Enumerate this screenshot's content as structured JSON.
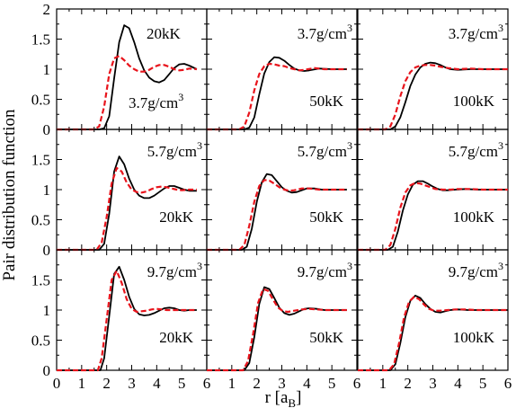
{
  "chart_data": {
    "type": "line",
    "layout": "3x3 grid of panels sharing axes",
    "ylabel": "Pair distribution function",
    "xlabel": "r [a",
    "xlabel_sub": "B",
    "xlabel_end": "]",
    "xlim": [
      0,
      6
    ],
    "ylim": [
      0,
      2
    ],
    "x_ticks": [
      "0",
      "1",
      "2",
      "3",
      "4",
      "5",
      "6"
    ],
    "y_ticks": [
      "0",
      "0.5",
      "1",
      "1.5",
      "2"
    ],
    "grid": false,
    "legend": "none",
    "colors": {
      "solid": "#000000",
      "dashed": "#e8141c"
    },
    "panels": [
      {
        "row": 0,
        "col": 0,
        "label1": "20kK",
        "label2": "3.7g/cm",
        "label2_sup": "3",
        "series": [
          {
            "style": "solid",
            "x": [
              0,
              1.7,
              1.9,
              2.1,
              2.3,
              2.5,
              2.7,
              2.9,
              3.1,
              3.3,
              3.5,
              3.7,
              3.9,
              4.1,
              4.3,
              4.5,
              4.7,
              4.9,
              5.1,
              5.3,
              5.6
            ],
            "y": [
              0,
              0,
              0.02,
              0.22,
              0.85,
              1.45,
              1.73,
              1.68,
              1.45,
              1.18,
              0.98,
              0.86,
              0.8,
              0.78,
              0.82,
              0.92,
              1.02,
              1.08,
              1.09,
              1.06,
              1.0
            ]
          },
          {
            "style": "dashed",
            "x": [
              0,
              1.5,
              1.7,
              1.9,
              2.1,
              2.3,
              2.5,
              2.7,
              2.9,
              3.1,
              3.3,
              3.5,
              3.7,
              3.9,
              4.1,
              4.3,
              4.5,
              4.7,
              4.9,
              5.1,
              5.3,
              5.6
            ],
            "y": [
              0,
              0,
              0.05,
              0.38,
              0.92,
              1.18,
              1.22,
              1.15,
              1.06,
              1.0,
              0.96,
              0.96,
              0.99,
              1.04,
              1.07,
              1.07,
              1.04,
              1.0,
              0.98,
              0.99,
              1.01,
              1.0
            ]
          }
        ]
      },
      {
        "row": 0,
        "col": 1,
        "label1": "50kK",
        "label2": "3.7g/cm",
        "label2_sup": "3",
        "series": [
          {
            "style": "solid",
            "x": [
              0,
              1.5,
              1.7,
              1.9,
              2.1,
              2.3,
              2.5,
              2.7,
              2.9,
              3.1,
              3.3,
              3.5,
              3.7,
              3.9,
              4.1,
              4.5,
              5.0,
              5.6
            ],
            "y": [
              0,
              0,
              0.03,
              0.2,
              0.58,
              0.93,
              1.12,
              1.2,
              1.19,
              1.14,
              1.07,
              1.01,
              0.98,
              0.97,
              0.98,
              1.01,
              1.0,
              1.0
            ]
          },
          {
            "style": "dashed",
            "x": [
              0,
              1.3,
              1.5,
              1.7,
              1.9,
              2.1,
              2.3,
              2.5,
              2.7,
              2.9,
              3.1,
              3.3,
              3.5,
              3.7,
              3.9,
              4.3,
              4.7,
              5.0,
              5.6
            ],
            "y": [
              0,
              0,
              0.05,
              0.28,
              0.65,
              0.92,
              1.05,
              1.09,
              1.08,
              1.06,
              1.05,
              1.02,
              1.0,
              0.98,
              0.99,
              1.02,
              1.0,
              1.0,
              1.0
            ]
          }
        ]
      },
      {
        "row": 0,
        "col": 2,
        "label1": "100kK",
        "label2": "3.7g/cm",
        "label2_sup": "3",
        "series": [
          {
            "style": "solid",
            "x": [
              0,
              1.3,
              1.5,
              1.7,
              1.9,
              2.1,
              2.3,
              2.5,
              2.7,
              2.9,
              3.1,
              3.3,
              3.5,
              3.7,
              4.0,
              4.5,
              5.0,
              6.0
            ],
            "y": [
              0,
              0,
              0.05,
              0.2,
              0.45,
              0.72,
              0.91,
              1.03,
              1.09,
              1.11,
              1.1,
              1.07,
              1.03,
              1.0,
              0.99,
              1.0,
              1.0,
              1.0
            ]
          },
          {
            "style": "dashed",
            "x": [
              0,
              1.1,
              1.3,
              1.5,
              1.7,
              1.9,
              2.1,
              2.3,
              2.5,
              2.7,
              2.9,
              3.1,
              3.3,
              3.6,
              4.0,
              4.5,
              5.0,
              6.0
            ],
            "y": [
              0,
              0,
              0.05,
              0.25,
              0.55,
              0.8,
              0.95,
              1.03,
              1.06,
              1.07,
              1.07,
              1.06,
              1.04,
              1.02,
              1.0,
              1.01,
              1.0,
              1.0
            ]
          }
        ]
      },
      {
        "row": 1,
        "col": 0,
        "label1": "20kK",
        "label2": "5.7g/cm",
        "label2_sup": "3",
        "series": [
          {
            "style": "solid",
            "x": [
              0,
              1.7,
              1.9,
              2.1,
              2.3,
              2.5,
              2.7,
              2.9,
              3.1,
              3.3,
              3.5,
              3.7,
              3.9,
              4.1,
              4.3,
              4.5,
              4.7,
              4.9,
              5.1,
              5.3,
              5.6
            ],
            "y": [
              0,
              0,
              0.1,
              0.6,
              1.3,
              1.55,
              1.42,
              1.18,
              1.0,
              0.9,
              0.86,
              0.86,
              0.9,
              0.96,
              1.02,
              1.06,
              1.06,
              1.03,
              1.0,
              0.98,
              0.98
            ]
          },
          {
            "style": "dashed",
            "x": [
              0,
              1.6,
              1.8,
              2.0,
              2.2,
              2.4,
              2.6,
              2.8,
              3.0,
              3.2,
              3.4,
              3.6,
              3.8,
              4.0,
              4.2,
              4.4,
              4.6,
              4.8,
              5.0,
              5.3,
              5.6
            ],
            "y": [
              0,
              0,
              0.12,
              0.55,
              1.1,
              1.36,
              1.3,
              1.12,
              1.0,
              0.96,
              0.95,
              0.97,
              1.01,
              1.04,
              1.05,
              1.04,
              1.02,
              1.0,
              0.99,
              1.0,
              1.0
            ]
          }
        ]
      },
      {
        "row": 1,
        "col": 1,
        "label1": "50kK",
        "label2": "5.7g/cm",
        "label2_sup": "3",
        "series": [
          {
            "style": "solid",
            "x": [
              0,
              1.4,
              1.6,
              1.8,
              2.0,
              2.2,
              2.4,
              2.6,
              2.8,
              3.0,
              3.2,
              3.4,
              3.6,
              3.8,
              4.0,
              4.3,
              4.6,
              5.0,
              5.6
            ],
            "y": [
              0,
              0,
              0.05,
              0.35,
              0.8,
              1.12,
              1.26,
              1.24,
              1.14,
              1.04,
              0.98,
              0.95,
              0.96,
              0.99,
              1.02,
              1.02,
              1.0,
              1.0,
              1.0
            ]
          },
          {
            "style": "dashed",
            "x": [
              0,
              1.3,
              1.5,
              1.7,
              1.9,
              2.1,
              2.3,
              2.5,
              2.7,
              2.9,
              3.1,
              3.3,
              3.5,
              3.8,
              4.1,
              4.5,
              5.0,
              5.6
            ],
            "y": [
              0,
              0,
              0.08,
              0.4,
              0.8,
              1.06,
              1.16,
              1.15,
              1.1,
              1.04,
              1.0,
              0.98,
              0.99,
              1.02,
              1.02,
              1.0,
              1.0,
              1.0
            ]
          }
        ]
      },
      {
        "row": 1,
        "col": 2,
        "label1": "100kK",
        "label2": "5.7g/cm",
        "label2_sup": "3",
        "series": [
          {
            "style": "solid",
            "x": [
              0,
              1.2,
              1.4,
              1.6,
              1.8,
              2.0,
              2.2,
              2.4,
              2.6,
              2.8,
              3.0,
              3.2,
              3.4,
              3.6,
              3.9,
              4.3,
              4.8,
              6.0
            ],
            "y": [
              0,
              0,
              0.05,
              0.3,
              0.65,
              0.92,
              1.08,
              1.14,
              1.14,
              1.1,
              1.05,
              1.01,
              0.99,
              0.99,
              1.0,
              1.01,
              1.0,
              1.0
            ]
          },
          {
            "style": "dashed",
            "x": [
              0,
              1.1,
              1.3,
              1.5,
              1.7,
              1.9,
              2.1,
              2.3,
              2.5,
              2.7,
              2.9,
              3.1,
              3.4,
              3.7,
              4.0,
              4.5,
              5.0,
              6.0
            ],
            "y": [
              0,
              0,
              0.08,
              0.35,
              0.7,
              0.95,
              1.07,
              1.11,
              1.1,
              1.07,
              1.04,
              1.01,
              1.0,
              1.0,
              1.01,
              1.01,
              1.0,
              1.0
            ]
          }
        ]
      },
      {
        "row": 2,
        "col": 0,
        "label1": "20kK",
        "label2": "9.7g/cm",
        "label2_sup": "3",
        "series": [
          {
            "style": "solid",
            "x": [
              0,
              1.75,
              1.9,
              2.1,
              2.3,
              2.5,
              2.7,
              2.9,
              3.1,
              3.3,
              3.5,
              3.7,
              3.9,
              4.1,
              4.3,
              4.5,
              4.7,
              4.9,
              5.1,
              5.3,
              5.6
            ],
            "y": [
              0,
              0,
              0.2,
              0.9,
              1.6,
              1.72,
              1.5,
              1.22,
              1.02,
              0.93,
              0.91,
              0.92,
              0.95,
              0.99,
              1.03,
              1.04,
              1.03,
              1.0,
              0.99,
              1.0,
              1.0
            ]
          },
          {
            "style": "dashed",
            "x": [
              0,
              1.65,
              1.8,
              2.0,
              2.2,
              2.4,
              2.6,
              2.8,
              3.0,
              3.2,
              3.4,
              3.6,
              3.8,
              4.0,
              4.2,
              4.4,
              4.6,
              4.8,
              5.0,
              5.3,
              5.6
            ],
            "y": [
              0,
              0,
              0.2,
              0.85,
              1.5,
              1.65,
              1.45,
              1.18,
              1.02,
              0.97,
              0.98,
              0.99,
              1.01,
              1.02,
              1.01,
              1.0,
              1.0,
              1.0,
              1.0,
              1.0,
              1.0
            ]
          }
        ]
      },
      {
        "row": 2,
        "col": 1,
        "label1": "50kK",
        "label2": "9.7g/cm",
        "label2_sup": "3",
        "series": [
          {
            "style": "solid",
            "x": [
              0,
              1.5,
              1.7,
              1.9,
              2.1,
              2.3,
              2.5,
              2.7,
              2.9,
              3.1,
              3.3,
              3.5,
              3.7,
              3.9,
              4.1,
              4.4,
              4.7,
              5.0,
              5.6
            ],
            "y": [
              0,
              0,
              0.12,
              0.55,
              1.1,
              1.38,
              1.35,
              1.2,
              1.04,
              0.95,
              0.92,
              0.94,
              0.98,
              1.02,
              1.03,
              1.02,
              1.0,
              1.0,
              1.0
            ]
          },
          {
            "style": "dashed",
            "x": [
              0,
              1.45,
              1.65,
              1.85,
              2.05,
              2.25,
              2.45,
              2.65,
              2.85,
              3.05,
              3.25,
              3.5,
              3.8,
              4.1,
              4.4,
              4.7,
              5.0,
              5.6
            ],
            "y": [
              0,
              0,
              0.15,
              0.6,
              1.12,
              1.35,
              1.32,
              1.17,
              1.04,
              0.98,
              0.97,
              0.99,
              1.01,
              1.02,
              1.01,
              1.0,
              1.0,
              1.0
            ]
          }
        ]
      },
      {
        "row": 2,
        "col": 2,
        "label1": "100kK",
        "label2": "9.7g/cm",
        "label2_sup": "3",
        "series": [
          {
            "style": "solid",
            "x": [
              0,
              1.3,
              1.5,
              1.7,
              1.9,
              2.1,
              2.3,
              2.5,
              2.7,
              2.9,
              3.1,
              3.3,
              3.5,
              3.7,
              4.0,
              4.4,
              4.8,
              6.0
            ],
            "y": [
              0,
              0,
              0.1,
              0.45,
              0.88,
              1.15,
              1.24,
              1.2,
              1.1,
              1.02,
              0.97,
              0.96,
              0.98,
              1.0,
              1.01,
              1.0,
              1.0,
              1.0
            ]
          },
          {
            "style": "dashed",
            "x": [
              0,
              1.25,
              1.45,
              1.65,
              1.85,
              2.05,
              2.25,
              2.45,
              2.65,
              2.85,
              3.05,
              3.3,
              3.6,
              3.9,
              4.3,
              4.7,
              5.0,
              6.0
            ],
            "y": [
              0,
              0,
              0.1,
              0.45,
              0.88,
              1.14,
              1.22,
              1.18,
              1.09,
              1.02,
              0.99,
              0.99,
              1.0,
              1.01,
              1.01,
              1.0,
              1.0,
              1.0
            ]
          }
        ]
      }
    ]
  }
}
